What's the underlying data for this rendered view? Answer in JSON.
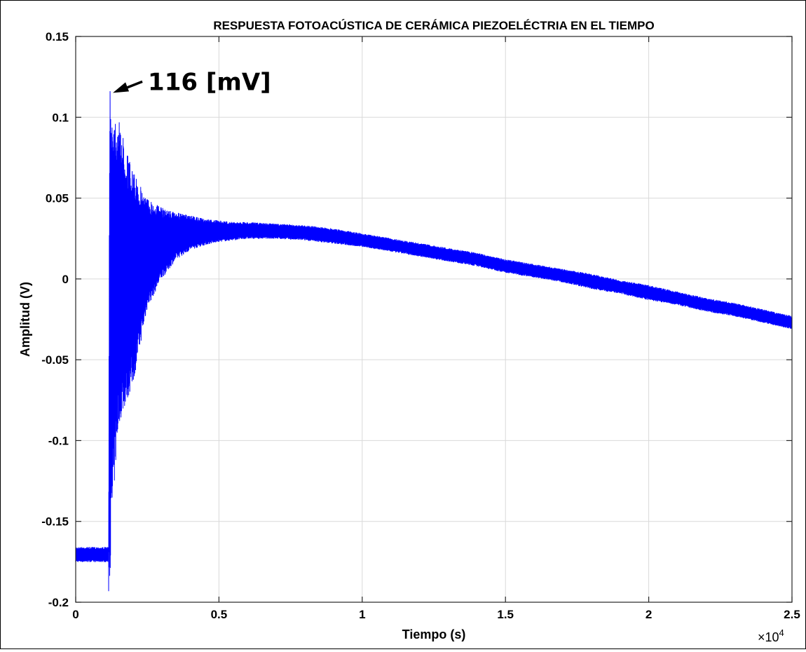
{
  "chart_data": {
    "type": "line",
    "title": "RESPUESTA FOTOACÚSTICA DE CERÁMICA PIEZOELÉCTRIA EN EL TIEMPO",
    "xlabel": "Tiempo (s)",
    "ylabel": "Amplitud  (V)",
    "x_exponent_label": "×10",
    "x_exponent_power": "4",
    "xlim": [
      0,
      25000
    ],
    "ylim": [
      -0.2,
      0.15
    ],
    "x_ticks": [
      0,
      5000,
      10000,
      15000,
      20000,
      25000
    ],
    "x_tick_labels": [
      "0",
      "0.5",
      "1",
      "1.5",
      "2",
      "2.5"
    ],
    "y_ticks": [
      -0.2,
      -0.15,
      -0.1,
      -0.05,
      0,
      0.05,
      0.1,
      0.15
    ],
    "y_tick_labels": [
      "-0.2",
      "-0.15",
      "-0.1",
      "-0.05",
      "0",
      "0.05",
      "0.1",
      "0.15"
    ],
    "grid": true,
    "line_color": "#0000ff",
    "series": [
      {
        "envelope_x": [
          0,
          1150,
          1180,
          1300,
          1500,
          2000,
          2500,
          3000,
          3500,
          4000,
          4500,
          5000,
          5500,
          6000,
          7000,
          8000,
          9000,
          10000,
          11000,
          12000,
          13000,
          14000,
          15000,
          16000,
          17000,
          18000,
          19000,
          20000,
          21000,
          22000,
          23000,
          24000,
          25000
        ],
        "envelope_upper": [
          -0.166,
          -0.166,
          0.11,
          0.106,
          0.098,
          0.066,
          0.05,
          0.044,
          0.041,
          0.039,
          0.037,
          0.036,
          0.035,
          0.035,
          0.034,
          0.033,
          0.031,
          0.028,
          0.025,
          0.022,
          0.019,
          0.016,
          0.012,
          0.009,
          0.006,
          0.003,
          -0.001,
          -0.004,
          -0.008,
          -0.012,
          -0.015,
          -0.019,
          -0.023
        ],
        "envelope_lower": [
          -0.175,
          -0.175,
          -0.19,
          -0.14,
          -0.09,
          -0.065,
          -0.018,
          0.0,
          0.012,
          0.018,
          0.021,
          0.023,
          0.024,
          0.025,
          0.025,
          0.024,
          0.022,
          0.02,
          0.017,
          0.014,
          0.011,
          0.008,
          0.004,
          0.001,
          -0.002,
          -0.006,
          -0.009,
          -0.013,
          -0.016,
          -0.02,
          -0.023,
          -0.027,
          -0.031
        ],
        "peak_x": 1200,
        "peak_y": 0.116,
        "min_x": 1150,
        "min_y": -0.193
      }
    ],
    "annotations": [
      {
        "text": "116 [mV]",
        "x": 1200,
        "y": 0.116
      }
    ]
  }
}
